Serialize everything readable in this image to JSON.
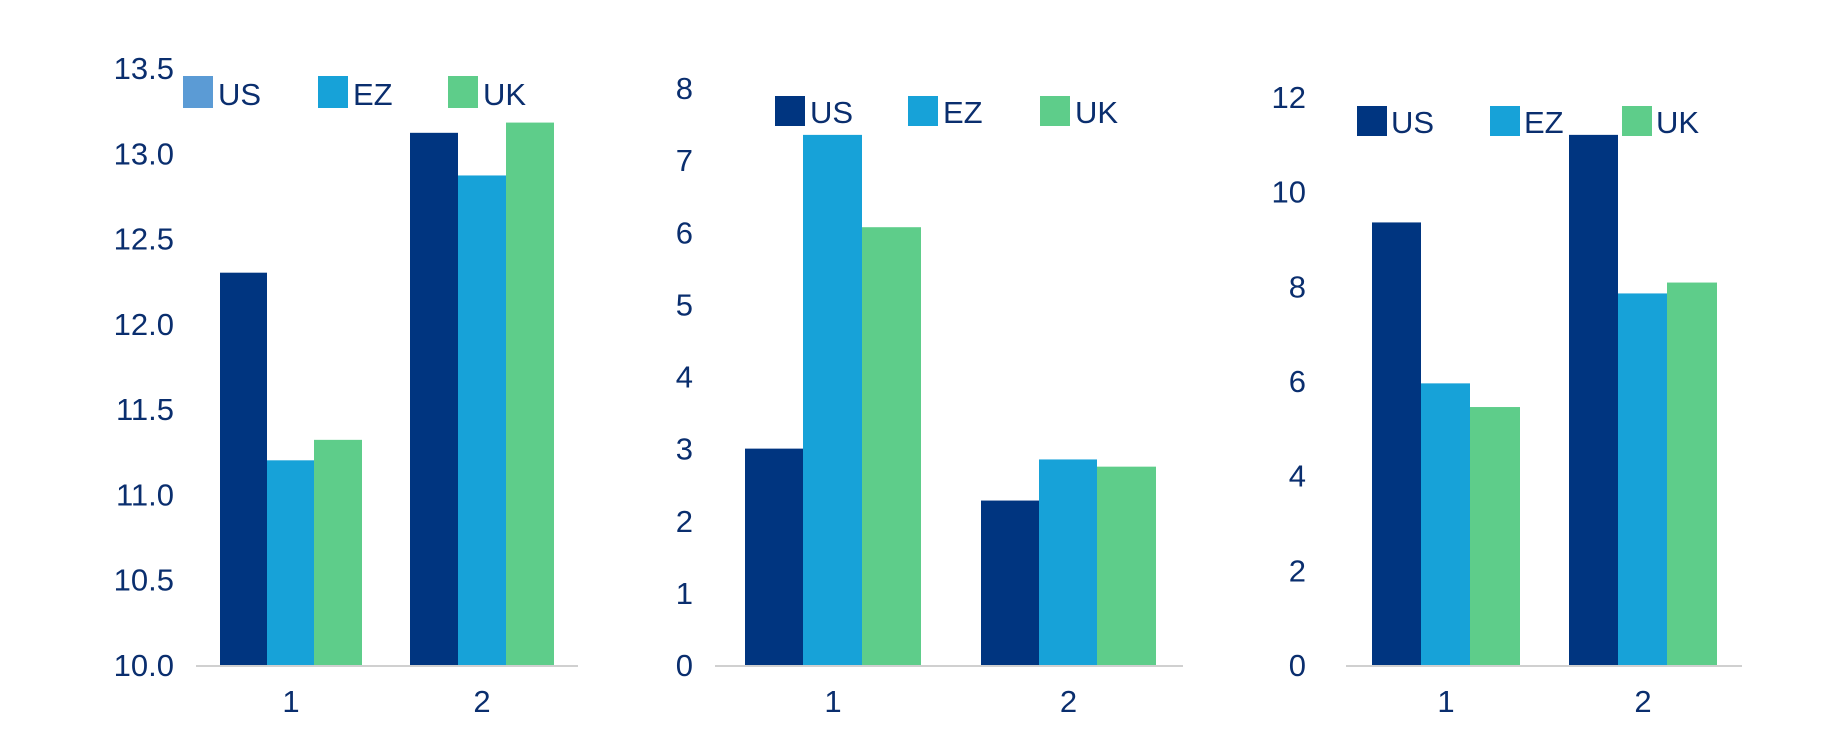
{
  "colors": {
    "US": "#003580",
    "EZ": "#17a2d8",
    "UK": "#5ecd8a",
    "US_legend_first": "#5b9bd5",
    "axis_text": "#0a2e6e",
    "baseline": "#d0d0d0"
  },
  "chart_data": [
    {
      "type": "bar",
      "categories": [
        "1",
        "2"
      ],
      "series": [
        {
          "name": "US",
          "values": [
            12.3,
            13.12
          ]
        },
        {
          "name": "EZ",
          "values": [
            11.2,
            12.87
          ]
        },
        {
          "name": "UK",
          "values": [
            11.32,
            13.18
          ]
        }
      ],
      "ylim": [
        10.0,
        13.5
      ],
      "yticks": [
        "10.0",
        "10.5",
        "11.0",
        "11.5",
        "12.0",
        "12.5",
        "13.0",
        "13.5"
      ],
      "legend": "top-left",
      "grid": false
    },
    {
      "type": "bar",
      "categories": [
        "1",
        "2"
      ],
      "series": [
        {
          "name": "US",
          "values": [
            3.0,
            2.28
          ]
        },
        {
          "name": "EZ",
          "values": [
            7.35,
            2.85
          ]
        },
        {
          "name": "UK",
          "values": [
            6.07,
            2.75
          ]
        }
      ],
      "ylim": [
        0,
        8
      ],
      "yticks": [
        "0",
        "1",
        "2",
        "3",
        "4",
        "5",
        "6",
        "7",
        "8"
      ],
      "legend": "top",
      "grid": false
    },
    {
      "type": "bar",
      "categories": [
        "1",
        "2"
      ],
      "series": [
        {
          "name": "US",
          "values": [
            9.35,
            11.2
          ]
        },
        {
          "name": "EZ",
          "values": [
            5.95,
            7.85
          ]
        },
        {
          "name": "UK",
          "values": [
            5.45,
            8.08
          ]
        }
      ],
      "ylim": [
        0,
        12
      ],
      "yticks": [
        "0",
        "2",
        "4",
        "6",
        "8",
        "10",
        "12"
      ],
      "legend": "top-left",
      "grid": false
    }
  ]
}
